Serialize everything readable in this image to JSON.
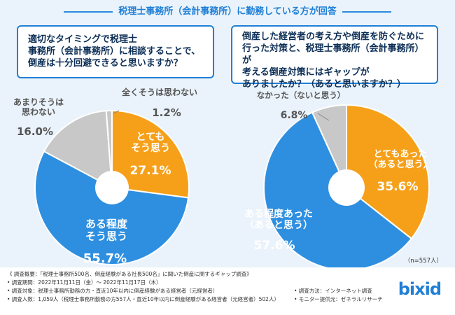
{
  "title": "税理士事務所（会計事務所）に勤務している方が回答",
  "questions": {
    "q1": "適切なタイミングで税理士\n事務所（会計事務所）に相談することで、\n倒産は十分回避できると思いますか？",
    "q2": "倒産した経営者の考え方や倒産を防ぐために\n行った対策と、税理士事務所（会計事務所）が\n考える倒産対策にはギャップが\nありましたか？（あると思いますか？）"
  },
  "colors": {
    "orange": "#f6a01a",
    "blue": "#2e8fe0",
    "gray": "#c8c8c8",
    "dark_blue": "#1f7fd6",
    "navy": "#0c2e55"
  },
  "chart_data": [
    {
      "type": "pie",
      "slices": [
        {
          "label": "とても\nそう思う",
          "value": 27.1,
          "display": "27.1%"
        },
        {
          "label": "ある程度\nそう思う",
          "value": 55.7,
          "display": "55.7%"
        },
        {
          "label": "あまりそうは\n思わない",
          "value": 16.0,
          "display": "16.0%"
        },
        {
          "label": "全くそうは思わない",
          "value": 1.2,
          "display": "1.2%"
        }
      ]
    },
    {
      "type": "pie",
      "slices": [
        {
          "label": "とてもあった\n（あると思う）",
          "value": 35.6,
          "display": "35.6%"
        },
        {
          "label": "ある程度あった\n（あると思う）",
          "value": 57.6,
          "display": "57.6%"
        },
        {
          "label": "なかった（ないと思う）",
          "value": 6.8,
          "display": "6.8%"
        }
      ],
      "note": "（n=557人）"
    }
  ],
  "footer": {
    "overview": "《 調査概要：「税理士事務所500名、倒産経験がある社長500名」に聞いた倒産に関するギャップ調査》",
    "period": "• 調査期間：2022年11月11日（金）～ 2022年11月17日（木）",
    "target": "• 調査対象：税理士事務所勤務の方・直近10年以内に倒産経験がある経営者（元経営者）",
    "count": "• 調査人数：1,059人（税理士事務所勤務の方557人・直近10年以内に倒産経験がある経営者（元経営者）502人）",
    "method": "• 調査方法：インターネット調査",
    "provider": "• モニター提供元：ゼネラルリサーチ"
  },
  "logo": {
    "main": "bixid"
  }
}
